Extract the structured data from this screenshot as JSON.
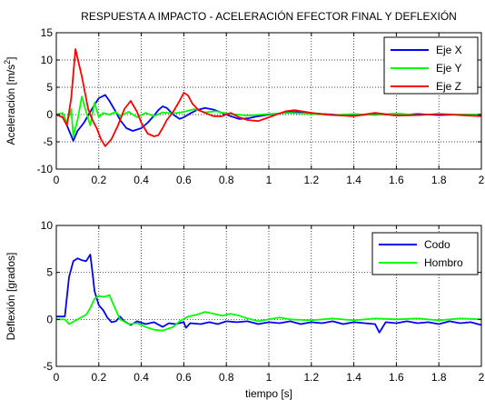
{
  "chart_data": [
    {
      "type": "line",
      "title": "RESPUESTA A IMPACTO - ACELERACIÓN EFECTOR FINAL Y DEFLEXIÓN",
      "xlabel": "",
      "ylabel": "Aceleración [m/s²]",
      "ylabel_parts": {
        "main": "Aceleración [m/s",
        "sup": "2",
        "end": "]"
      },
      "xlim": [
        0,
        2
      ],
      "ylim": [
        -10,
        15
      ],
      "xticks": [
        0,
        0.2,
        0.4,
        0.6,
        0.8,
        1,
        1.2,
        1.4,
        1.6,
        1.8,
        2
      ],
      "xtick_labels": [
        "0",
        "0.2",
        "0.4",
        "0.6",
        "0.8",
        "1",
        "1.2",
        "1.4",
        "1.6",
        "1.8",
        "2"
      ],
      "yticks": [
        -10,
        -5,
        0,
        5,
        10,
        15
      ],
      "ytick_labels": [
        "-10",
        "-5",
        "0",
        "5",
        "10",
        "15"
      ],
      "grid": true,
      "legend_position": "top-right",
      "series": [
        {
          "name": "Eje X",
          "color": "#0000ff",
          "x": [
            0,
            0.03,
            0.05,
            0.08,
            0.1,
            0.13,
            0.16,
            0.18,
            0.2,
            0.23,
            0.25,
            0.28,
            0.3,
            0.33,
            0.36,
            0.4,
            0.43,
            0.46,
            0.48,
            0.5,
            0.52,
            0.55,
            0.58,
            0.6,
            0.63,
            0.66,
            0.7,
            0.74,
            0.78,
            0.82,
            0.86,
            0.9,
            0.95,
            1.0,
            1.05,
            1.1,
            1.15,
            1.2,
            1.3,
            1.4,
            1.5,
            1.6,
            1.7,
            1.8,
            1.9,
            2.0
          ],
          "y": [
            0,
            -0.5,
            -2,
            -4.8,
            -3,
            -1.5,
            0.5,
            1.8,
            3,
            3.6,
            2.5,
            0.5,
            -1,
            -2.5,
            -3,
            -2.5,
            -1.5,
            -0.2,
            0.8,
            1.5,
            1.2,
            0,
            -0.8,
            -0.5,
            0.2,
            0.8,
            1.2,
            0.9,
            0.3,
            -0.3,
            -0.8,
            -0.7,
            -0.3,
            0,
            0.2,
            0.5,
            0.4,
            0.2,
            0,
            -0.2,
            0.1,
            -0.1,
            0.1,
            -0.1,
            0,
            0
          ]
        },
        {
          "name": "Eje Y",
          "color": "#00ff00",
          "x": [
            0,
            0.03,
            0.05,
            0.07,
            0.08,
            0.1,
            0.12,
            0.14,
            0.16,
            0.18,
            0.2,
            0.22,
            0.25,
            0.28,
            0.3,
            0.34,
            0.38,
            0.42,
            0.46,
            0.5,
            0.55,
            0.6,
            0.65,
            0.7,
            0.75,
            0.8,
            0.9,
            1.0,
            1.1,
            1.2,
            1.3,
            1.4,
            1.5,
            1.6,
            1.7,
            1.8,
            1.9,
            2.0
          ],
          "y": [
            0,
            0.3,
            -1.5,
            1,
            -4,
            -1,
            3.3,
            0.5,
            -2,
            2.2,
            -0.5,
            0.3,
            0,
            0.5,
            -0.3,
            0.5,
            -0.5,
            0.3,
            -0.3,
            0.4,
            0.2,
            0.5,
            1,
            0.4,
            0.6,
            0.2,
            -0.2,
            0.1,
            0.3,
            0.1,
            -0.1,
            0.1,
            -0.1,
            0.2,
            -0.1,
            0.1,
            0,
            0
          ]
        },
        {
          "name": "Eje Z",
          "color": "#ff0000",
          "x": [
            0,
            0.03,
            0.05,
            0.07,
            0.09,
            0.12,
            0.15,
            0.17,
            0.19,
            0.21,
            0.23,
            0.26,
            0.29,
            0.32,
            0.35,
            0.38,
            0.4,
            0.43,
            0.46,
            0.48,
            0.5,
            0.52,
            0.55,
            0.58,
            0.6,
            0.62,
            0.64,
            0.67,
            0.7,
            0.74,
            0.78,
            0.82,
            0.86,
            0.9,
            0.95,
            1.0,
            1.05,
            1.08,
            1.12,
            1.2,
            1.3,
            1.4,
            1.5,
            1.6,
            1.7,
            1.8,
            1.9,
            2.0
          ],
          "y": [
            0,
            -0.5,
            -2,
            3,
            12,
            7,
            1,
            -1,
            -2.5,
            -4.5,
            -5.8,
            -4.5,
            -2,
            1,
            2.5,
            0.5,
            -1.5,
            -3.5,
            -4,
            -3.8,
            -2.5,
            -1,
            0.5,
            2.5,
            4,
            3.5,
            2,
            0.8,
            0.3,
            -0.3,
            -0.3,
            0.3,
            -0.5,
            -1,
            -1.2,
            -0.5,
            0.2,
            0.6,
            0.8,
            0.3,
            -0.1,
            -0.3,
            0.3,
            -0.2,
            -0.1,
            0.1,
            -0.1,
            -0.3
          ]
        }
      ]
    },
    {
      "type": "line",
      "title": "",
      "xlabel": "tiempo [s]",
      "ylabel": "Deflexión [grados]",
      "xlim": [
        0,
        2
      ],
      "ylim": [
        -5,
        10
      ],
      "xticks": [
        0,
        0.2,
        0.4,
        0.6,
        0.8,
        1,
        1.2,
        1.4,
        1.6,
        1.8,
        2
      ],
      "xtick_labels": [
        "0",
        "0.2",
        "0.4",
        "0.6",
        "0.8",
        "1",
        "1.2",
        "1.4",
        "1.6",
        "1.8",
        "2"
      ],
      "yticks": [
        -5,
        0,
        5,
        10
      ],
      "ytick_labels": [
        "-5",
        "0",
        "5",
        "10"
      ],
      "grid": true,
      "legend_position": "top-right",
      "series": [
        {
          "name": "Codo",
          "color": "#0000ff",
          "x": [
            0,
            0.02,
            0.04,
            0.06,
            0.08,
            0.1,
            0.12,
            0.14,
            0.16,
            0.17,
            0.18,
            0.2,
            0.22,
            0.24,
            0.26,
            0.28,
            0.3,
            0.32,
            0.35,
            0.38,
            0.42,
            0.46,
            0.5,
            0.53,
            0.56,
            0.6,
            0.61,
            0.63,
            0.68,
            0.72,
            0.76,
            0.8,
            0.85,
            0.9,
            0.95,
            1.0,
            1.05,
            1.1,
            1.15,
            1.2,
            1.25,
            1.3,
            1.35,
            1.4,
            1.45,
            1.5,
            1.52,
            1.55,
            1.6,
            1.65,
            1.7,
            1.75,
            1.8,
            1.85,
            1.9,
            1.95,
            2.0
          ],
          "y": [
            0.3,
            0.3,
            0.3,
            4.5,
            6.2,
            6.5,
            6.3,
            6.2,
            6.9,
            5.0,
            3.0,
            1.5,
            1.0,
            0.2,
            -0.3,
            -0.2,
            0.3,
            -0.2,
            -0.6,
            -0.2,
            -0.5,
            -0.3,
            -0.8,
            -0.4,
            -0.5,
            -0.3,
            -0.9,
            -0.4,
            -0.5,
            -0.3,
            -0.5,
            -0.2,
            -0.3,
            -0.2,
            -0.5,
            -0.3,
            -0.4,
            -0.2,
            -0.5,
            -0.3,
            -0.4,
            -0.2,
            -0.5,
            -0.3,
            -0.4,
            -0.5,
            -1.4,
            -0.3,
            -0.4,
            -0.2,
            -0.4,
            -0.3,
            -0.5,
            -0.2,
            -0.4,
            -0.3,
            -0.6
          ]
        },
        {
          "name": "Hombro",
          "color": "#00ff00",
          "x": [
            0,
            0.04,
            0.06,
            0.1,
            0.14,
            0.16,
            0.18,
            0.2,
            0.22,
            0.24,
            0.25,
            0.27,
            0.3,
            0.34,
            0.38,
            0.42,
            0.46,
            0.5,
            0.55,
            0.58,
            0.62,
            0.66,
            0.7,
            0.74,
            0.78,
            0.82,
            0.86,
            0.9,
            0.95,
            1.0,
            1.05,
            1.1,
            1.2,
            1.3,
            1.4,
            1.5,
            1.6,
            1.7,
            1.8,
            1.9,
            2.0
          ],
          "y": [
            0,
            0,
            -0.5,
            0,
            0.5,
            1.2,
            2.2,
            2.5,
            2.4,
            2.5,
            2.6,
            1.5,
            0,
            -0.5,
            -0.4,
            -0.8,
            -1.1,
            -1.2,
            -0.8,
            -0.2,
            0.3,
            0.5,
            0.8,
            0.6,
            0.4,
            0.6,
            0.4,
            0.1,
            -0.2,
            0,
            0.2,
            0,
            -0.1,
            0.1,
            -0.1,
            0.1,
            0,
            0.1,
            -0.1,
            0.1,
            0
          ]
        }
      ]
    }
  ]
}
